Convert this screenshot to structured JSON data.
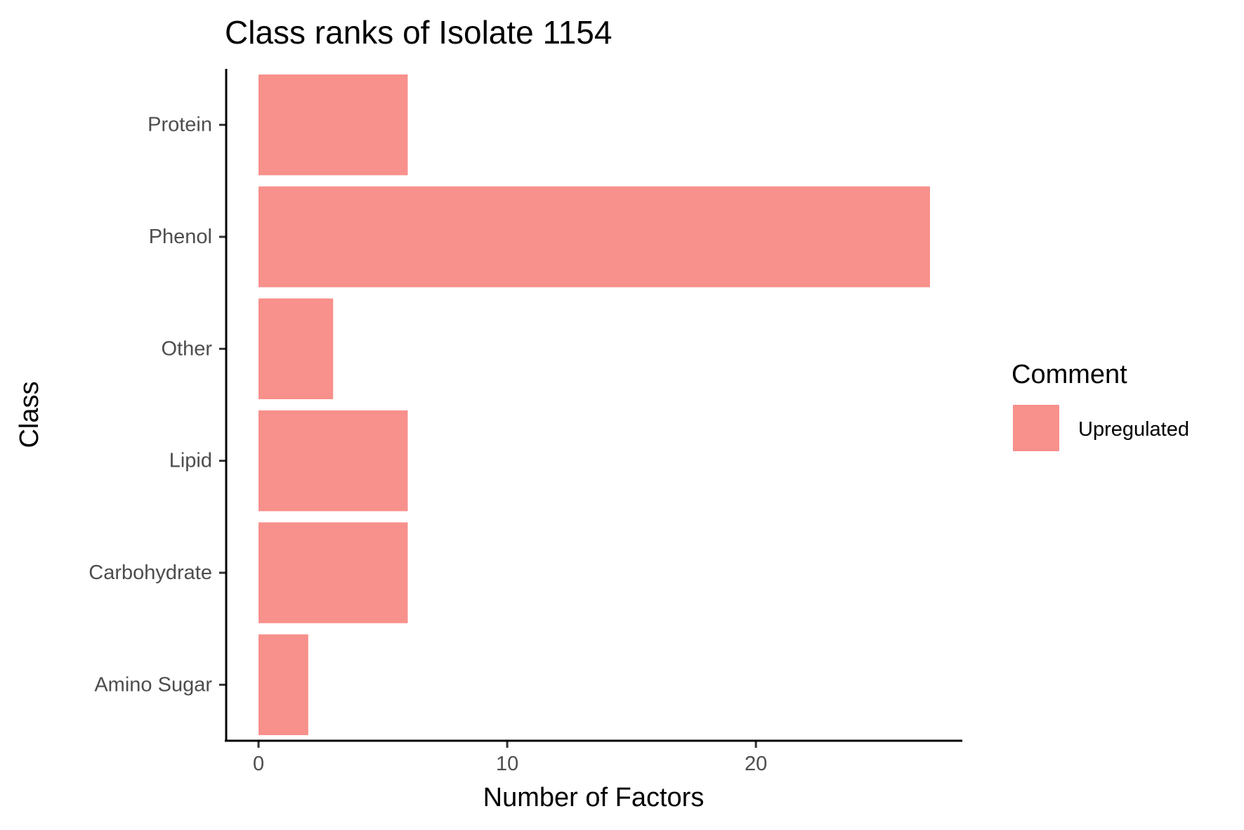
{
  "chart_data": {
    "type": "bar",
    "orientation": "horizontal",
    "title": "Class ranks of Isolate 1154",
    "xlabel": "Number of Factors",
    "ylabel": "Class",
    "categories": [
      "Protein",
      "Phenol",
      "Other",
      "Lipid",
      "Carbohydrate",
      "Amino Sugar"
    ],
    "series": [
      {
        "name": "Upregulated",
        "values": [
          6,
          27,
          3,
          6,
          6,
          2
        ],
        "color": "#f8908c"
      }
    ],
    "xlim": [
      -1.3,
      28.3
    ],
    "xticks": [
      0,
      10,
      20
    ],
    "grid": false,
    "legend": {
      "title": "Comment",
      "position": "right"
    }
  }
}
